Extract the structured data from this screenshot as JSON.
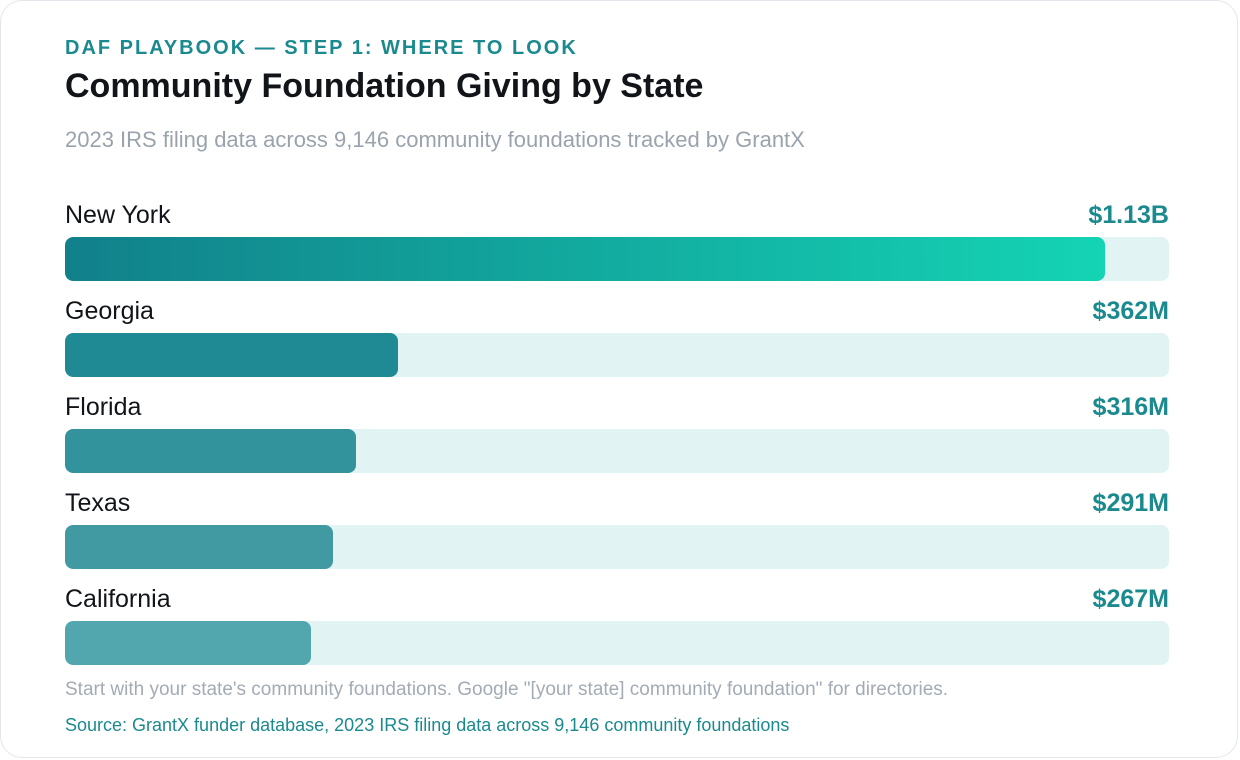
{
  "header": {
    "eyebrow": "DAF PLAYBOOK — STEP 1: WHERE TO LOOK",
    "title": "Community Foundation Giving by State",
    "subtitle": "2023 IRS filing data across 9,146 community foundations tracked by GrantX"
  },
  "footer": {
    "note": "Start with your state's community foundations. Google \"[your state] community foundation\" for directories.",
    "source": "Source: GrantX funder database, 2023 IRS filing data across 9,146 community foundations"
  },
  "colors": {
    "accent": "#1a8a8f",
    "track": "#e2f3f4",
    "gradient_start": "#11808a",
    "gradient_end": "#14d4b4",
    "bar_colors": [
      "#14d4b4",
      "#1f8a93",
      "#33939c",
      "#4199a1",
      "#52a7ae"
    ]
  },
  "chart_data": {
    "type": "bar",
    "orientation": "horizontal",
    "categories": [
      "New York",
      "Georgia",
      "Florida",
      "Texas",
      "California"
    ],
    "values": [
      1130,
      362,
      316,
      291,
      267
    ],
    "value_unit": "$M",
    "value_labels": [
      "$1.13B",
      "$362M",
      "$316M",
      "$291M",
      "$267M"
    ],
    "title": "Community Foundation Giving by State",
    "subtitle": "2023 IRS filing data across 9,146 community foundations tracked by GrantX",
    "xlim": [
      0,
      1200
    ],
    "grid": false,
    "legend": "none"
  }
}
